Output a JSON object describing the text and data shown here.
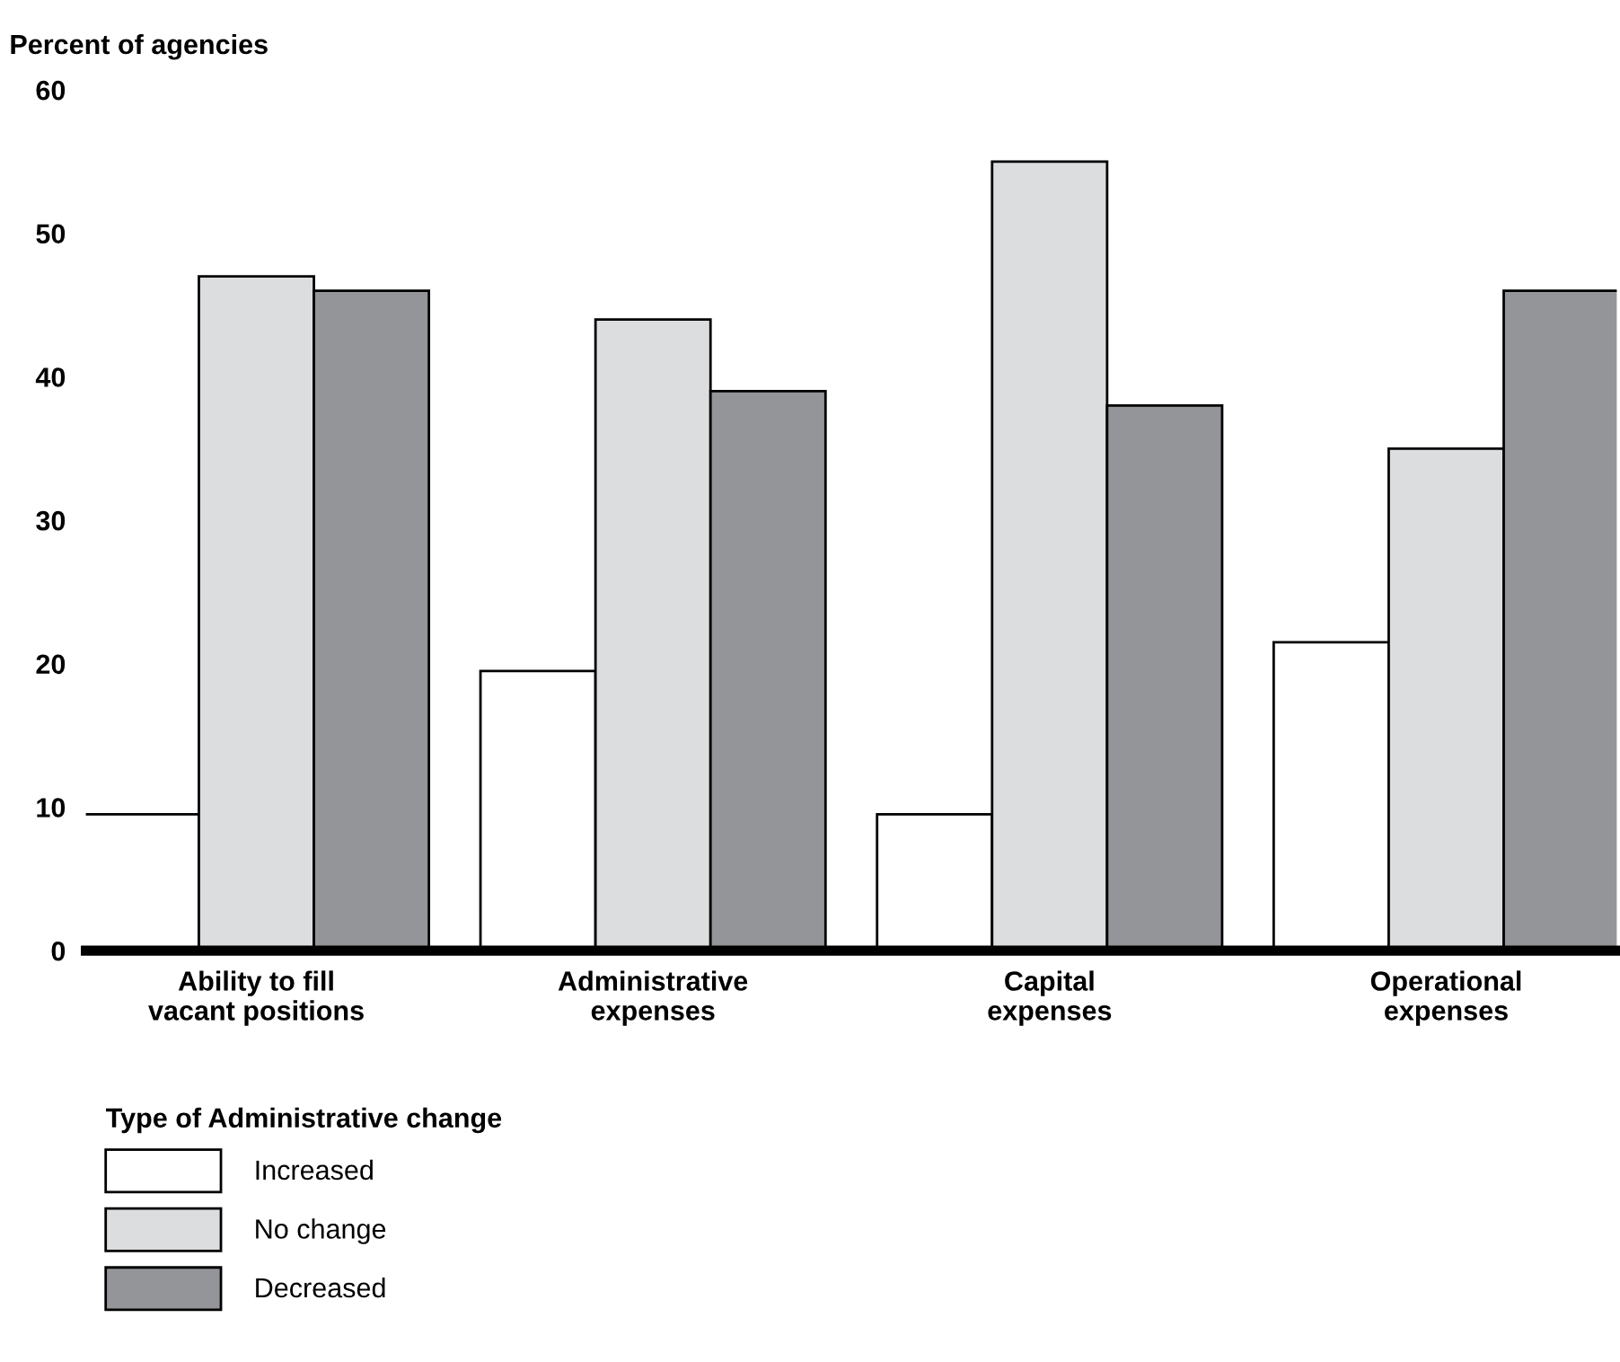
{
  "chart_data": {
    "type": "bar",
    "ylabel": "Percent of agencies",
    "legend_title": "Type of Administrative change",
    "legend": "bottom left",
    "grid": false,
    "categories": [
      "Ability to fill\nvacant positions",
      "Administrative\nexpenses",
      "Capital\nexpenses",
      "Operational\nexpenses"
    ],
    "ylim": [
      0,
      60
    ],
    "yticks": [
      0,
      10,
      20,
      30,
      40,
      50,
      60
    ],
    "series": [
      {
        "name": "Increased",
        "color": "#ffffff",
        "values": [
          9.5,
          19.5,
          9.5,
          21.5
        ]
      },
      {
        "name": "No change",
        "color": "#dcdddf",
        "values": [
          47,
          44,
          55,
          35
        ]
      },
      {
        "name": "Decreased",
        "color": "#939598",
        "values": [
          46,
          39,
          38,
          46
        ]
      }
    ]
  }
}
